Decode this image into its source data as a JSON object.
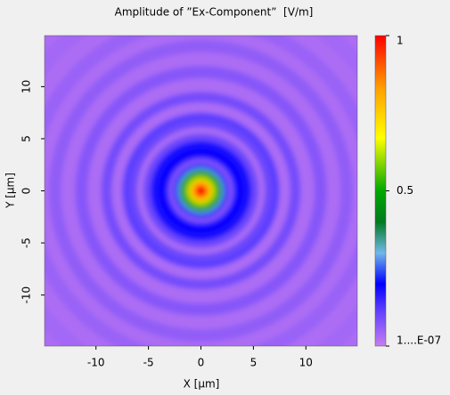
{
  "chart_data": {
    "type": "heatmap",
    "title": "Amplitude of ”Ex-Component”  [V/m]",
    "xlabel": "X [µm]",
    "ylabel": "Y [µm]",
    "xlim": [
      -14.9,
      14.9
    ],
    "ylim": [
      -14.9,
      14.9
    ],
    "xticks": [
      -10,
      -5,
      0,
      5,
      10
    ],
    "yticks": [
      -10,
      -5,
      0,
      5,
      10
    ],
    "radius": [
      21.5,
      20,
      18.5,
      17,
      15.7,
      14.5,
      13.3,
      12,
      10.8,
      9.5,
      8.5,
      7.5,
      6.8,
      6.1,
      5.5,
      4.8,
      4,
      3.3,
      3.0,
      2.8,
      2.5,
      2.2,
      1.9,
      1.5,
      1.1,
      0.6
    ],
    "values": [
      0.03,
      0.04,
      0.03,
      0.05,
      0.03,
      0.06,
      0.03,
      0.07,
      0.03,
      0.09,
      0.03,
      0.12,
      0.1,
      0.03,
      0.1,
      0.18,
      0.2,
      0.14,
      0.05,
      0.1,
      0.22,
      0.32,
      0.45,
      0.6,
      0.78,
      0.95
    ],
    "clim": [
      1e-07,
      1
    ],
    "cticks": [
      1,
      0.5,
      {
        "value": 1e-07,
        "label": "1....E-07"
      }
    ],
    "colormap": [
      {
        "pos": 0,
        "color": "#c77df0"
      },
      {
        "pos": 0.12,
        "color": "#5a3cff"
      },
      {
        "pos": 0.2,
        "color": "#0000ff"
      },
      {
        "pos": 0.3,
        "color": "#70b8e8"
      },
      {
        "pos": 0.4,
        "color": "#007a20"
      },
      {
        "pos": 0.5,
        "color": "#00a800"
      },
      {
        "pos": 0.67,
        "color": "#ffff00"
      },
      {
        "pos": 0.83,
        "color": "#ffa000"
      },
      {
        "pos": 1,
        "color": "#ff0000"
      }
    ]
  }
}
